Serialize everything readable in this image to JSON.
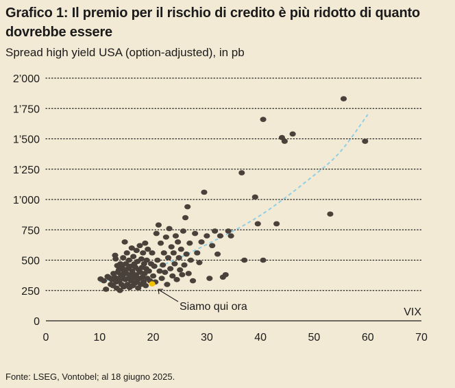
{
  "title": "Grafico 1: Il premio per il rischio di credito è più ridotto di quanto dovrebbe essere",
  "subtitle": "Spread high yield USA (option-adjusted), in pb",
  "source": "Fonte: LSEG, Vontobel; al 18 giugno 2025.",
  "colors": {
    "background": "#f3ead5",
    "points": "#4a413b",
    "highlight": "#f2c200",
    "trend": "#8ecfe6"
  },
  "chart_data": {
    "type": "scatter",
    "xlabel": "VIX",
    "ylabel": "",
    "xlim": [
      0,
      70
    ],
    "ylim": [
      0,
      2000
    ],
    "x_ticks": [
      "0",
      "10",
      "20",
      "30",
      "40",
      "50",
      "60",
      "70"
    ],
    "y_ticks": [
      "0",
      "250",
      "500",
      "750",
      "1’000",
      "1’250",
      "1’500",
      "1’750",
      "2’000"
    ],
    "grid": "horizontal dotted",
    "annotation": {
      "text": "Siamo qui ora",
      "x": 19.8,
      "y": 305
    },
    "trendline": {
      "style": "dashed",
      "points": [
        [
          10,
          320
        ],
        [
          20,
          430
        ],
        [
          30,
          630
        ],
        [
          40,
          870
        ],
        [
          50,
          1200
        ],
        [
          55,
          1400
        ],
        [
          60,
          1700
        ]
      ]
    },
    "series": [
      {
        "points": [
          [
            10.2,
            345
          ],
          [
            10.8,
            330
          ],
          [
            11.2,
            260
          ],
          [
            11.5,
            365
          ],
          [
            11.8,
            355
          ],
          [
            12.1,
            300
          ],
          [
            12.3,
            340
          ],
          [
            12.5,
            290
          ],
          [
            12.6,
            390
          ],
          [
            12.8,
            360
          ],
          [
            12.9,
            540
          ],
          [
            13.0,
            510
          ],
          [
            13.1,
            320
          ],
          [
            13.2,
            270
          ],
          [
            13.3,
            455
          ],
          [
            13.4,
            400
          ],
          [
            13.5,
            350
          ],
          [
            13.6,
            420
          ],
          [
            13.7,
            330
          ],
          [
            13.8,
            250
          ],
          [
            13.9,
            470
          ],
          [
            14.0,
            380
          ],
          [
            14.1,
            300
          ],
          [
            14.2,
            440
          ],
          [
            14.3,
            360
          ],
          [
            14.4,
            520
          ],
          [
            14.5,
            280
          ],
          [
            14.6,
            410
          ],
          [
            14.7,
            650
          ],
          [
            14.8,
            340
          ],
          [
            14.9,
            470
          ],
          [
            15.0,
            390
          ],
          [
            15.1,
            560
          ],
          [
            15.2,
            300
          ],
          [
            15.3,
            430
          ],
          [
            15.4,
            350
          ],
          [
            15.5,
            500
          ],
          [
            15.6,
            275
          ],
          [
            15.7,
            450
          ],
          [
            15.8,
            380
          ],
          [
            15.9,
            330
          ],
          [
            16.0,
            600
          ],
          [
            16.1,
            410
          ],
          [
            16.2,
            290
          ],
          [
            16.3,
            530
          ],
          [
            16.4,
            360
          ],
          [
            16.5,
            470
          ],
          [
            16.6,
            310
          ],
          [
            16.7,
            440
          ],
          [
            16.8,
            380
          ],
          [
            16.9,
            580
          ],
          [
            17.0,
            330
          ],
          [
            17.1,
            490
          ],
          [
            17.2,
            270
          ],
          [
            17.3,
            420
          ],
          [
            17.4,
            350
          ],
          [
            17.5,
            620
          ],
          [
            17.6,
            400
          ],
          [
            17.7,
            300
          ],
          [
            17.8,
            510
          ],
          [
            17.9,
            440
          ],
          [
            18.0,
            360
          ],
          [
            18.1,
            560
          ],
          [
            18.2,
            320
          ],
          [
            18.3,
            470
          ],
          [
            18.4,
            390
          ],
          [
            18.5,
            640
          ],
          [
            18.6,
            290
          ],
          [
            18.7,
            430
          ],
          [
            18.8,
            500
          ],
          [
            18.9,
            350
          ],
          [
            19.0,
            590
          ],
          [
            19.2,
            410
          ],
          [
            19.4,
            330
          ],
          [
            19.6,
            470
          ],
          [
            19.8,
            560
          ],
          [
            20.0,
            370
          ],
          [
            20.2,
            450
          ],
          [
            20.4,
            320
          ],
          [
            20.6,
            720
          ],
          [
            20.8,
            500
          ],
          [
            21.0,
            790
          ],
          [
            21.2,
            410
          ],
          [
            21.4,
            640
          ],
          [
            21.6,
            350
          ],
          [
            21.8,
            460
          ],
          [
            22.0,
            560
          ],
          [
            22.2,
            400
          ],
          [
            22.4,
            690
          ],
          [
            22.6,
            300
          ],
          [
            22.8,
            520
          ],
          [
            23.0,
            760
          ],
          [
            23.2,
            430
          ],
          [
            23.4,
            610
          ],
          [
            23.6,
            370
          ],
          [
            23.8,
            560
          ],
          [
            24.0,
            470
          ],
          [
            24.2,
            700
          ],
          [
            24.4,
            340
          ],
          [
            24.6,
            650
          ],
          [
            24.8,
            520
          ],
          [
            25.0,
            420
          ],
          [
            25.2,
            590
          ],
          [
            25.4,
            380
          ],
          [
            25.6,
            740
          ],
          [
            25.8,
            460
          ],
          [
            26.0,
            850
          ],
          [
            26.2,
            550
          ],
          [
            26.4,
            940
          ],
          [
            26.6,
            390
          ],
          [
            26.8,
            640
          ],
          [
            27.0,
            500
          ],
          [
            27.4,
            330
          ],
          [
            27.8,
            720
          ],
          [
            28.2,
            560
          ],
          [
            28.6,
            480
          ],
          [
            29.0,
            650
          ],
          [
            29.5,
            1060
          ],
          [
            30.0,
            700
          ],
          [
            30.5,
            350
          ],
          [
            31.0,
            620
          ],
          [
            31.5,
            740
          ],
          [
            32.0,
            550
          ],
          [
            32.5,
            700
          ],
          [
            33.0,
            360
          ],
          [
            33.5,
            380
          ],
          [
            34.0,
            740
          ],
          [
            34.5,
            700
          ],
          [
            36.5,
            1220
          ],
          [
            37.0,
            500
          ],
          [
            39.0,
            1020
          ],
          [
            39.5,
            800
          ],
          [
            40.5,
            1660
          ],
          [
            40.5,
            500
          ],
          [
            43.0,
            800
          ],
          [
            44.0,
            1510
          ],
          [
            44.5,
            1480
          ],
          [
            46.0,
            1540
          ],
          [
            53.0,
            880
          ],
          [
            55.5,
            1830
          ],
          [
            59.5,
            1480
          ]
        ]
      }
    ],
    "highlight_point": [
      19.8,
      305
    ]
  }
}
